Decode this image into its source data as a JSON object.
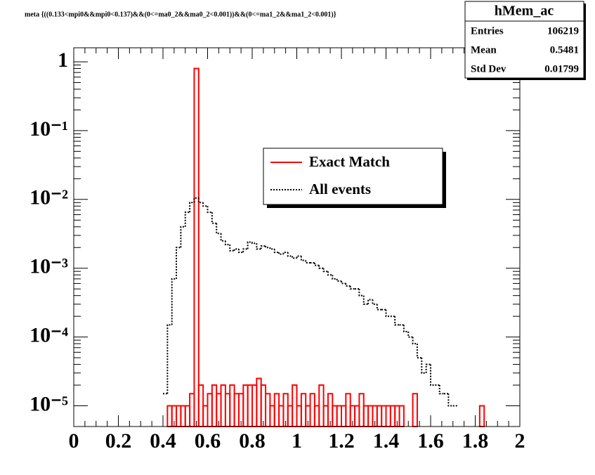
{
  "chart_data": {
    "type": "histogram",
    "title": "meta {((0.133<mpi0&&mpi0<0.137)&&(0<=ma0_2&&ma0_2<0.001))&&(0<=ma1_2&&ma1_2<0.001)}",
    "bins": [
      0,
      0.02,
      0.04,
      0.06,
      0.08,
      0.1,
      0.12,
      0.14,
      0.16,
      0.18,
      0.2,
      0.22,
      0.24,
      0.26,
      0.28,
      0.3,
      0.32,
      0.34,
      0.36,
      0.38,
      0.4,
      0.42,
      0.44,
      0.46,
      0.48,
      0.5,
      0.52,
      0.54,
      0.56,
      0.58,
      0.6,
      0.62,
      0.64,
      0.66,
      0.68,
      0.7,
      0.72,
      0.74,
      0.76,
      0.78,
      0.8,
      0.82,
      0.84,
      0.86,
      0.88,
      0.9,
      0.92,
      0.94,
      0.96,
      0.98,
      1,
      1.02,
      1.04,
      1.06,
      1.08,
      1.1,
      1.12,
      1.14,
      1.16,
      1.18,
      1.2,
      1.22,
      1.24,
      1.26,
      1.28,
      1.3,
      1.32,
      1.34,
      1.36,
      1.38,
      1.4,
      1.42,
      1.44,
      1.46,
      1.48,
      1.5,
      1.52,
      1.54,
      1.56,
      1.58,
      1.6,
      1.62,
      1.64,
      1.66,
      1.68,
      1.7,
      1.72,
      1.74,
      1.76,
      1.78,
      1.8,
      1.82,
      1.84,
      1.86,
      1.88,
      1.9,
      1.92,
      1.94,
      1.96,
      1.98,
      2
    ],
    "series": [
      {
        "name": "Exact Match",
        "color": "#ff0000",
        "line_style": "solid",
        "values": [
          null,
          null,
          null,
          null,
          null,
          null,
          null,
          null,
          null,
          null,
          null,
          null,
          null,
          null,
          null,
          null,
          null,
          null,
          null,
          null,
          null,
          1e-05,
          1e-05,
          1e-05,
          1e-05,
          1e-05,
          1.5e-05,
          0.8,
          2e-05,
          1e-05,
          1.5e-05,
          2e-05,
          1.5e-05,
          2e-05,
          1.5e-05,
          2e-05,
          1.5e-05,
          1.5e-05,
          2e-05,
          2e-05,
          2e-05,
          2.5e-05,
          2e-05,
          1.5e-05,
          1e-05,
          1.5e-05,
          1e-05,
          1.5e-05,
          1e-05,
          2e-05,
          1e-05,
          1.5e-05,
          1e-05,
          1.5e-05,
          1e-05,
          2e-05,
          1e-05,
          1.5e-05,
          1e-05,
          1e-05,
          1e-05,
          1.5e-05,
          1e-05,
          1e-05,
          1.5e-05,
          1e-05,
          1e-05,
          1e-05,
          1e-05,
          1e-05,
          1e-05,
          1e-05,
          1e-05,
          1e-05,
          null,
          null,
          1.5e-05,
          null,
          null,
          null,
          null,
          null,
          null,
          null,
          null,
          null,
          null,
          null,
          null,
          null,
          null,
          1e-05,
          null,
          null,
          null,
          null,
          null,
          null,
          null,
          null
        ]
      },
      {
        "name": "All events",
        "color": "#000000",
        "line_style": "dotted",
        "values": [
          null,
          null,
          null,
          null,
          null,
          null,
          null,
          null,
          null,
          null,
          null,
          null,
          null,
          null,
          null,
          null,
          null,
          null,
          null,
          null,
          1.5e-05,
          0.00015,
          0.0007,
          0.002,
          0.004,
          0.0065,
          0.009,
          0.0105,
          0.009,
          0.008,
          0.0065,
          0.0045,
          0.0032,
          0.0025,
          0.0022,
          0.0018,
          0.0019,
          0.0017,
          0.0019,
          0.0024,
          0.0023,
          0.0019,
          0.0021,
          0.002,
          0.0019,
          0.0017,
          0.0016,
          0.0017,
          0.0015,
          0.0014,
          0.0015,
          0.0013,
          0.0012,
          0.0012,
          0.0011,
          0.001,
          0.0009,
          0.0008,
          0.0007,
          0.00065,
          0.0006,
          0.00055,
          0.0005,
          0.0005,
          0.0004,
          0.0003,
          0.00035,
          0.0003,
          0.00025,
          0.00025,
          0.0002,
          0.0002,
          0.00015,
          0.00015,
          0.00012,
          0.0001,
          8e-05,
          5e-05,
          3e-05,
          4e-05,
          2e-05,
          2e-05,
          1.5e-05,
          1.5e-05,
          1e-05,
          1e-05,
          null,
          null,
          null,
          null,
          null,
          null,
          null,
          null,
          null,
          null,
          null,
          null,
          null,
          null
        ]
      }
    ],
    "xlim": [
      0,
      2
    ],
    "xticks": [
      0,
      0.2,
      0.4,
      0.6,
      0.8,
      1,
      1.2,
      1.4,
      1.6,
      1.8,
      2
    ],
    "ylim": [
      5e-06,
      1.6
    ],
    "yticks": [
      {
        "value": 1e-05,
        "label": "10⁻⁵"
      },
      {
        "value": 0.0001,
        "label": "10⁻⁴"
      },
      {
        "value": 0.001,
        "label": "10⁻³"
      },
      {
        "value": 0.01,
        "label": "10⁻²"
      },
      {
        "value": 0.1,
        "label": "10⁻¹"
      },
      1
    ],
    "log_y": true,
    "stats": {
      "name": "hMem_ac",
      "entries_label": "Entries",
      "entries": 106219,
      "mean_label": "Mean",
      "mean": 0.5481,
      "std_label": "Std Dev",
      "std": 0.01799
    }
  }
}
